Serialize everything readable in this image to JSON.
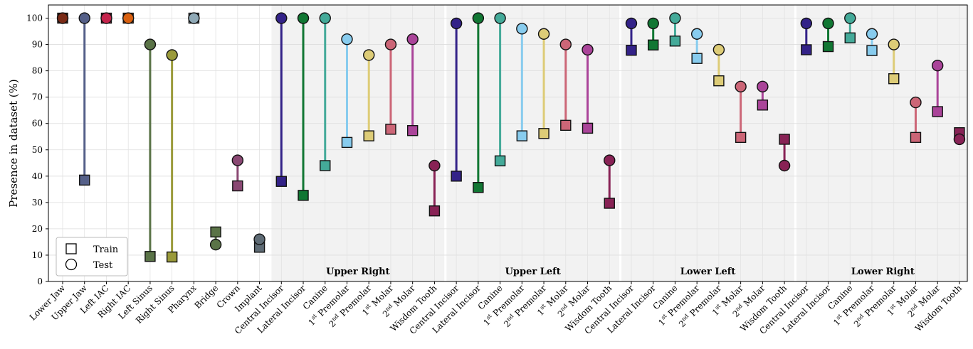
{
  "chart_data": {
    "type": "scatter",
    "ylabel": "Presence in dataset (%)",
    "ylim": [
      0,
      105
    ],
    "yticks": [
      0,
      10,
      20,
      30,
      40,
      50,
      60,
      70,
      80,
      90,
      100
    ],
    "grid": true,
    "legend": {
      "placement": "bottom-left",
      "entries": [
        {
          "label": "Train",
          "marker": "square"
        },
        {
          "label": "Test",
          "marker": "circle"
        }
      ]
    },
    "categories": [
      "Lower Jaw",
      "Upper Jaw",
      "Left IAC",
      "Right IAC",
      "Left Sinus",
      "Right Sinus",
      "Pharynx",
      "Bridge",
      "Crown",
      "Implant",
      "Central Incisor",
      "Lateral Incisor",
      "Canine",
      "1st Premolar",
      "2nd Premolar",
      "1st Molar",
      "2nd Molar",
      "Wisdom Tooth",
      "Central Incisor",
      "Lateral Incisor",
      "Canine",
      "1st Premolar",
      "2nd Premolar",
      "1st Molar",
      "2nd Molar",
      "Wisdom Tooth",
      "Central Incisor",
      "Lateral Incisor",
      "Canine",
      "1st Premolar",
      "2nd Premolar",
      "1st Molar",
      "2nd Molar",
      "Wisdom Tooth",
      "Central Incisor",
      "Lateral Incisor",
      "Canine",
      "1st Premolar",
      "2nd Premolar",
      "1st Molar",
      "2nd Molar",
      "Wisdom Tooth"
    ],
    "series": [
      {
        "name": "Train",
        "values": [
          100,
          38.5,
          100,
          100,
          9.5,
          9.3,
          100,
          18.8,
          36.3,
          13.0,
          38.0,
          32.7,
          44.0,
          52.8,
          55.3,
          57.8,
          57.3,
          26.8,
          40.0,
          35.7,
          45.8,
          55.3,
          56.2,
          59.3,
          58.2,
          29.7,
          87.8,
          89.8,
          91.3,
          84.7,
          76.2,
          54.7,
          67.0,
          54.0,
          88.0,
          89.2,
          92.5,
          87.7,
          77.0,
          54.7,
          64.5,
          56.5
        ]
      },
      {
        "name": "Test",
        "values": [
          100,
          100,
          100,
          100,
          90.0,
          86.0,
          100,
          14.0,
          46.0,
          16.0,
          100,
          100,
          100,
          92.0,
          86.0,
          90.0,
          92.0,
          44.0,
          98.0,
          100,
          100,
          96.0,
          94.0,
          90.0,
          88.0,
          46.0,
          98.0,
          98.0,
          100,
          94.0,
          88.0,
          74.0,
          74.0,
          44.0,
          98.0,
          98.0,
          100,
          94.0,
          90.0,
          68.0,
          82.0,
          54.0
        ]
      }
    ],
    "colors": [
      "#7a2a16",
      "#556089",
      "#c4244c",
      "#d9600f",
      "#5a7347",
      "#9a9a3a",
      "#8fa9b6",
      "#5a7347",
      "#8a4873",
      "#5e6b75",
      "#332288",
      "#117733",
      "#44aa99",
      "#88ccee",
      "#ddcc77",
      "#cc6677",
      "#aa4499",
      "#882255",
      "#332288",
      "#117733",
      "#44aa99",
      "#88ccee",
      "#ddcc77",
      "#cc6677",
      "#aa4499",
      "#882255",
      "#332288",
      "#117733",
      "#44aa99",
      "#88ccee",
      "#ddcc77",
      "#cc6677",
      "#aa4499",
      "#882255",
      "#332288",
      "#117733",
      "#44aa99",
      "#88ccee",
      "#ddcc77",
      "#cc6677",
      "#aa4499",
      "#882255"
    ],
    "groups": [
      {
        "label": "Upper Right",
        "start": 10,
        "end": 17
      },
      {
        "label": "Upper Left",
        "start": 18,
        "end": 25
      },
      {
        "label": "Lower Left",
        "start": 26,
        "end": 33
      },
      {
        "label": "Lower Right",
        "start": 34,
        "end": 41
      }
    ]
  }
}
